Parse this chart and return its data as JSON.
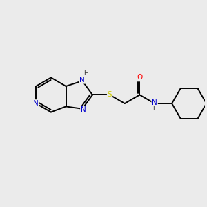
{
  "background_color": "#ebebeb",
  "atom_colors": {
    "N": "#0000cc",
    "S": "#cccc00",
    "O": "#ff0000",
    "H": "#555555",
    "C": "#000000"
  },
  "figsize": [
    3.0,
    3.0
  ],
  "dpi": 100,
  "xlim": [
    0,
    10
  ],
  "ylim": [
    0,
    10
  ]
}
